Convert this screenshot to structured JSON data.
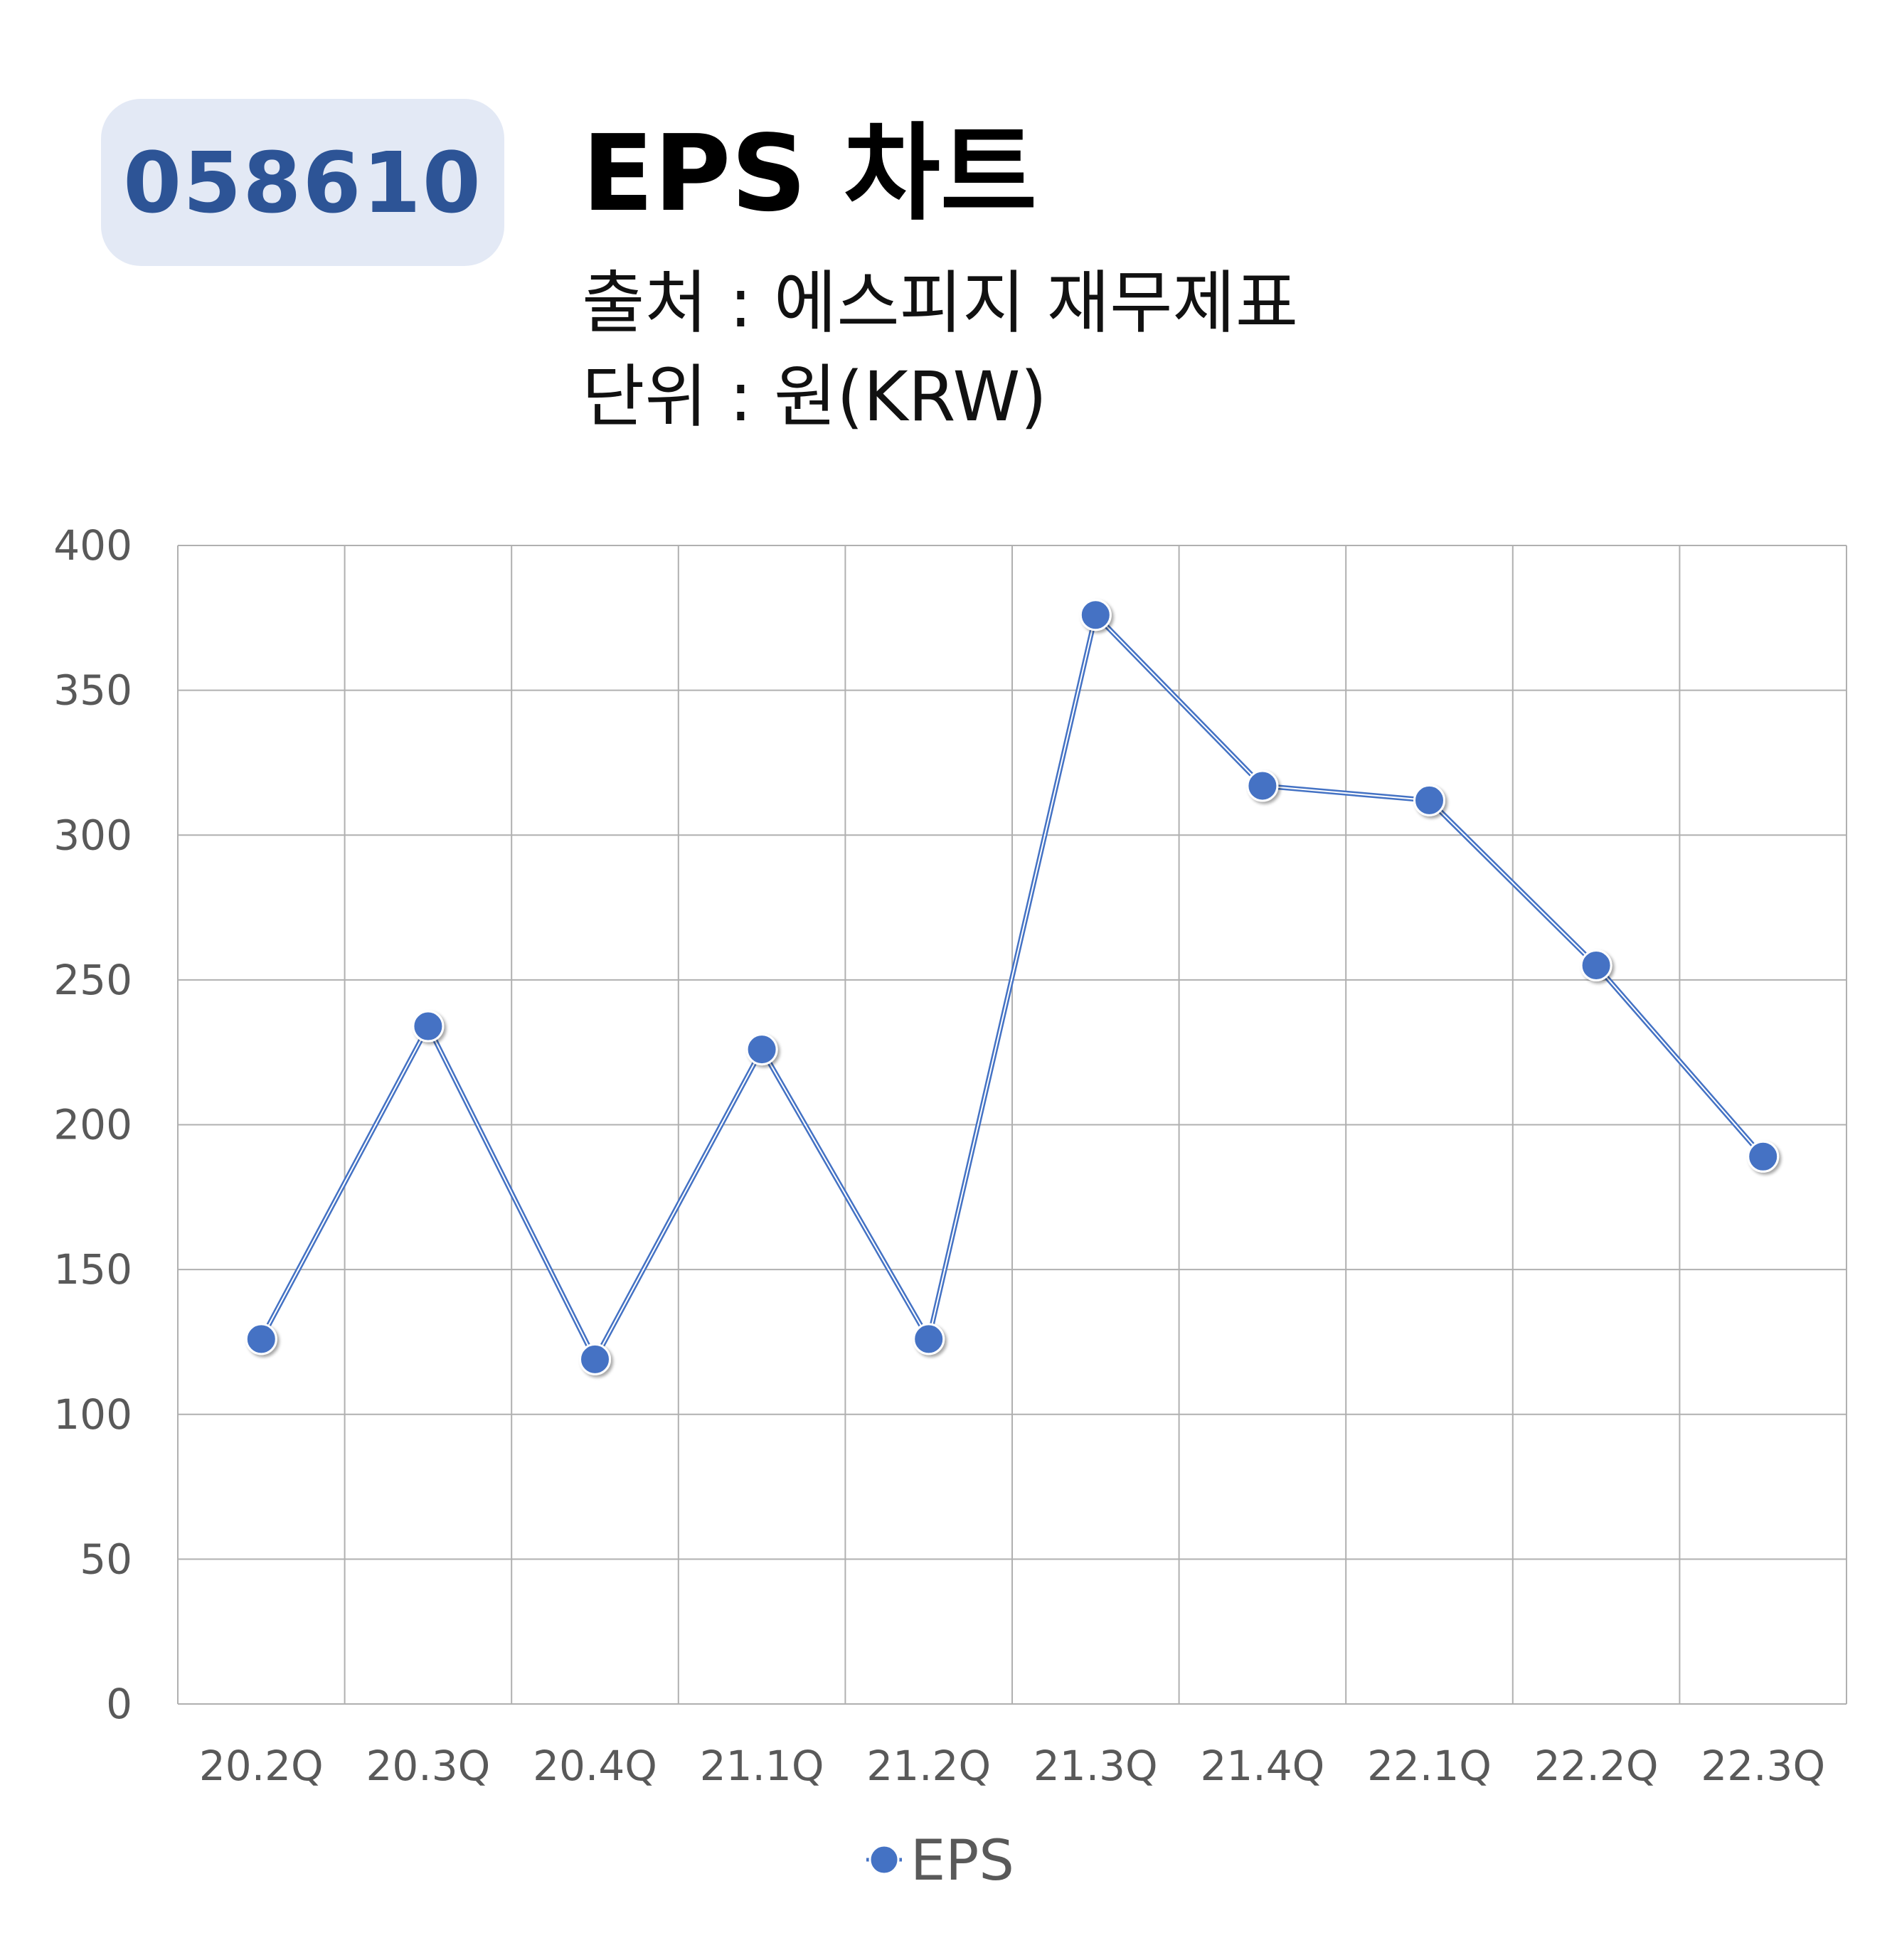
{
  "header": {
    "ticker": "058610",
    "title": "EPS 차트",
    "source": "출처 : 에스피지 재무제표",
    "unit": "단위 : 원(KRW)"
  },
  "colors": {
    "badge_bg": "#e3e9f5",
    "badge_text": "#2d5496",
    "series": "#4472c4",
    "grid": "#b0b0b0",
    "tick_text": "#595959"
  },
  "chart_data": {
    "type": "line",
    "categories": [
      "20.2Q",
      "20.3Q",
      "20.4Q",
      "21.1Q",
      "21.2Q",
      "21.3Q",
      "21.4Q",
      "22.1Q",
      "22.2Q",
      "22.3Q"
    ],
    "series": [
      {
        "name": "EPS",
        "values": [
          126,
          234,
          119,
          226,
          126,
          376,
          317,
          312,
          255,
          189
        ]
      }
    ],
    "ylim": [
      0,
      400
    ],
    "yticks": [
      0,
      50,
      100,
      150,
      200,
      250,
      300,
      350,
      400
    ],
    "grid": true,
    "legend": "bottom-center"
  }
}
